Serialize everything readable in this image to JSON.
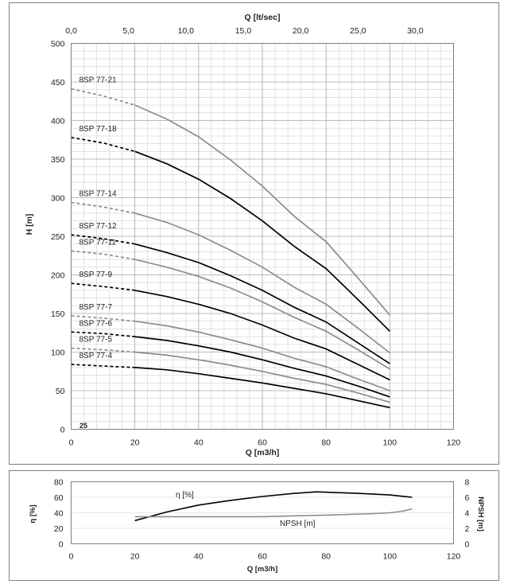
{
  "charts": {
    "main": {
      "type": "line",
      "xlabel": "Q [m3/h]",
      "ylabel": "H [m]",
      "top_xlabel": "Q [lt/sec]",
      "xlim": [
        0,
        120
      ],
      "ylim": [
        0,
        500
      ],
      "x_ticks": [
        "0",
        "20",
        "40",
        "60",
        "80",
        "100",
        "120"
      ],
      "y_ticks": [
        "0",
        "50",
        "100",
        "150",
        "200",
        "250",
        "300",
        "350",
        "400",
        "450",
        "500"
      ],
      "top_ticks": [
        "0,0",
        "5,0",
        "10,0",
        "15,0",
        "20,0",
        "25,0",
        "30,0"
      ],
      "small_label": "25",
      "grid": true,
      "series": [
        {
          "name": "8SP 77-21",
          "color": "#8c8c8c",
          "dashed_x": [
            0,
            20
          ],
          "x": [
            0,
            10,
            20,
            30,
            40,
            50,
            60,
            70,
            80,
            90,
            100
          ],
          "values": [
            441,
            432,
            420,
            402,
            379,
            349,
            315,
            276,
            243,
            196,
            148
          ]
        },
        {
          "name": "8SP 77-18",
          "color": "#000000",
          "dashed_x": [
            0,
            20
          ],
          "x": [
            0,
            10,
            20,
            30,
            40,
            50,
            60,
            70,
            80,
            90,
            100
          ],
          "values": [
            378,
            371,
            360,
            344,
            324,
            299,
            270,
            237,
            208,
            168,
            127
          ]
        },
        {
          "name": "8SP 77-14",
          "color": "#8c8c8c",
          "dashed_x": [
            0,
            20
          ],
          "x": [
            0,
            10,
            20,
            30,
            40,
            50,
            60,
            70,
            80,
            90,
            100
          ],
          "values": [
            294,
            288,
            280,
            268,
            252,
            232,
            210,
            184,
            162,
            131,
            99
          ]
        },
        {
          "name": "8SP 77-12",
          "color": "#000000",
          "dashed_x": [
            0,
            20
          ],
          "x": [
            0,
            10,
            20,
            30,
            40,
            50,
            60,
            70,
            80,
            90,
            100
          ],
          "values": [
            252,
            247,
            240,
            229,
            216,
            199,
            180,
            158,
            139,
            112,
            85
          ]
        },
        {
          "name": "8SP 77-11",
          "color": "#8c8c8c",
          "dashed_x": [
            0,
            20
          ],
          "x": [
            0,
            10,
            20,
            30,
            40,
            50,
            60,
            70,
            80,
            90,
            100
          ],
          "values": [
            231,
            227,
            220,
            210,
            198,
            183,
            165,
            145,
            127,
            103,
            78
          ]
        },
        {
          "name": "8SP 77-9",
          "color": "#000000",
          "dashed_x": [
            0,
            20
          ],
          "x": [
            0,
            10,
            20,
            30,
            40,
            50,
            60,
            70,
            80,
            90,
            100
          ],
          "values": [
            189,
            185,
            180,
            172,
            162,
            150,
            135,
            118,
            104,
            84,
            64
          ]
        },
        {
          "name": "8SP 77-7",
          "color": "#8c8c8c",
          "dashed_x": [
            0,
            20
          ],
          "x": [
            0,
            10,
            20,
            30,
            40,
            50,
            60,
            70,
            80,
            90,
            100
          ],
          "values": [
            147,
            144,
            140,
            134,
            126,
            116,
            105,
            92,
            81,
            65,
            50
          ]
        },
        {
          "name": "8SP 77-6",
          "color": "#000000",
          "dashed_x": [
            0,
            20
          ],
          "x": [
            0,
            10,
            20,
            30,
            40,
            50,
            60,
            70,
            80,
            90,
            100
          ],
          "values": [
            126,
            124,
            120,
            115,
            108,
            100,
            90,
            79,
            69,
            56,
            42
          ]
        },
        {
          "name": "8SP 77-5",
          "color": "#8c8c8c",
          "dashed_x": [
            0,
            20
          ],
          "x": [
            0,
            10,
            20,
            30,
            40,
            50,
            60,
            70,
            80,
            90,
            100
          ],
          "values": [
            105,
            103,
            100,
            96,
            90,
            83,
            75,
            66,
            58,
            47,
            35
          ]
        },
        {
          "name": "8SP 77-4",
          "color": "#000000",
          "dashed_x": [
            0,
            20
          ],
          "x": [
            0,
            10,
            20,
            30,
            40,
            50,
            60,
            70,
            80,
            90,
            100
          ],
          "values": [
            84,
            82,
            80,
            77,
            72,
            66,
            60,
            53,
            46,
            37,
            28
          ]
        }
      ]
    },
    "efficiency": {
      "type": "line",
      "xlabel": "Q [m3/h]",
      "ylabel_left": "η [%]",
      "ylabel_right": "NPSH [m]",
      "xlim": [
        0,
        120
      ],
      "ylim_left": [
        0,
        80
      ],
      "ylim_right": [
        0,
        8
      ],
      "x_ticks": [
        "0",
        "20",
        "40",
        "60",
        "80",
        "100",
        "120"
      ],
      "y_ticks_left": [
        "0",
        "20",
        "40",
        "60",
        "80"
      ],
      "y_ticks_right": [
        "0",
        "2",
        "4",
        "6",
        "8"
      ],
      "series": [
        {
          "name": "η [%]",
          "axis": "left",
          "color": "#000000",
          "x": [
            20,
            30,
            40,
            50,
            60,
            70,
            77,
            90,
            100,
            107
          ],
          "values": [
            30,
            41,
            50,
            56,
            61,
            65,
            67,
            65,
            63,
            60
          ]
        },
        {
          "name": "NPSH [m]",
          "axis": "right",
          "color": "#8c8c8c",
          "x": [
            20,
            40,
            60,
            80,
            95,
            100,
            104,
            107
          ],
          "values": [
            3.5,
            3.5,
            3.5,
            3.7,
            3.9,
            4.0,
            4.2,
            4.5
          ]
        }
      ]
    }
  }
}
